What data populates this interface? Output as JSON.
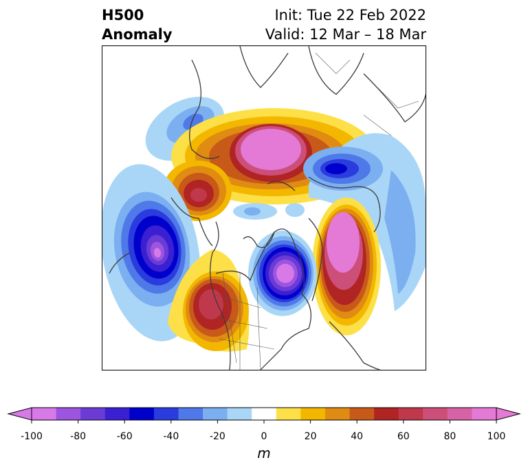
{
  "title": {
    "left_line1": "H500",
    "left_line2": "Anomaly",
    "init": "Init: Tue 22 Feb 2022",
    "valid": "Valid: 12 Mar – 18 Mar"
  },
  "colorbar": {
    "min": -100,
    "max": 100,
    "step": 10,
    "ticks": [
      "-100",
      "-80",
      "-60",
      "-40",
      "-20",
      "0",
      "20",
      "40",
      "60",
      "80",
      "100"
    ],
    "tick_values": [
      -100,
      -80,
      -60,
      -40,
      -20,
      0,
      20,
      40,
      60,
      80,
      100
    ],
    "units": "m",
    "colors": [
      "#d77ae8",
      "#9d55e0",
      "#6b3bd6",
      "#3b1fd2",
      "#0000cc",
      "#2a3cdd",
      "#4f79e8",
      "#7baff0",
      "#a9d6f7",
      "#ffffff",
      "#fde047",
      "#f3b700",
      "#e08b12",
      "#c85a19",
      "#b02424",
      "#c0384c",
      "#cc4f7a",
      "#d763a6",
      "#e47ad6"
    ]
  }
}
